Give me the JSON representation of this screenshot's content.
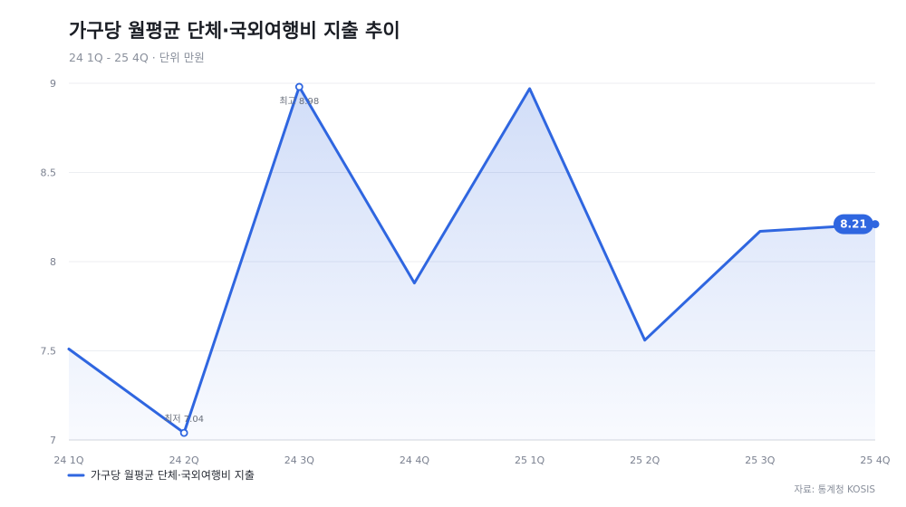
{
  "chart_data": {
    "type": "line",
    "title": "가구당 월평균 단체·국외여행비 지출 추이",
    "subtitle": "24 1Q - 25 4Q · 단위 만원",
    "source": "자료: 통계청 KOSIS",
    "categories": [
      "24 1Q",
      "24 2Q",
      "24 3Q",
      "24 4Q",
      "25 1Q",
      "25 2Q",
      "25 3Q",
      "25 4Q"
    ],
    "series": [
      {
        "name": "가구당 월평균 단체·국외여행비 지출",
        "values": [
          7.51,
          7.04,
          8.98,
          7.88,
          8.97,
          7.56,
          8.17,
          8.21
        ],
        "color": "#2f66e0"
      }
    ],
    "ylim": [
      7,
      9.1
    ],
    "yticks": [
      "7",
      "7.5",
      "8",
      "8.5",
      "9"
    ],
    "annotations": {
      "min_label": "최저 7.04",
      "max_label": "최고 8.98",
      "last_label": "8.21"
    },
    "grid": true,
    "legend_position": "bottom-left"
  }
}
